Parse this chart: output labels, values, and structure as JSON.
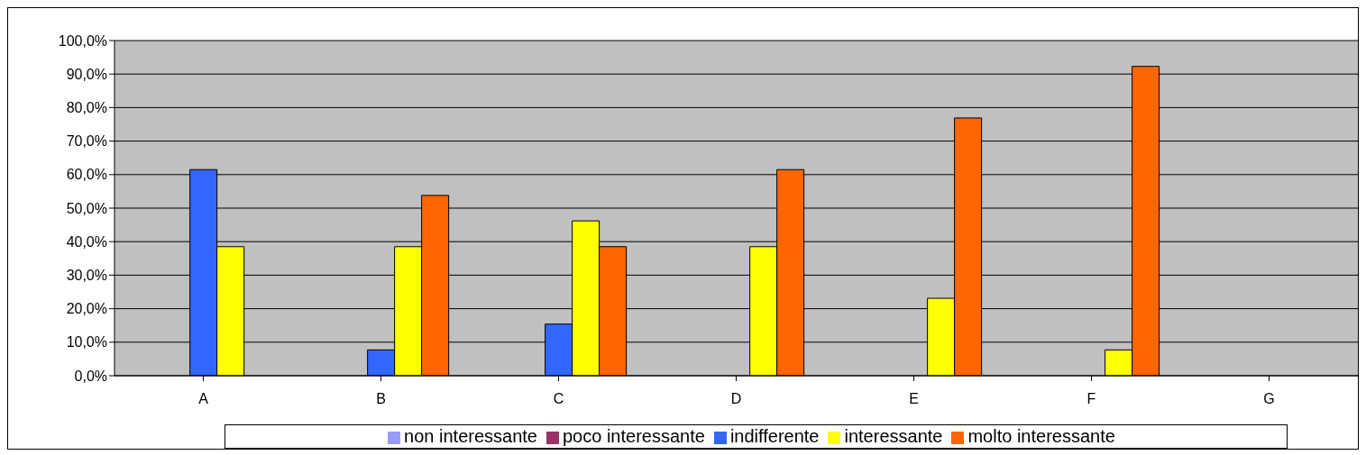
{
  "chart_data": {
    "type": "bar",
    "categories": [
      "A",
      "B",
      "C",
      "D",
      "E",
      "F",
      "G"
    ],
    "series": [
      {
        "name": "non interessante",
        "color": "#9999ff",
        "values": [
          0,
          0,
          0,
          0,
          0,
          0,
          0
        ]
      },
      {
        "name": "poco interessante",
        "color": "#993366",
        "values": [
          0,
          0,
          0,
          0,
          0,
          0,
          0
        ]
      },
      {
        "name": "indifferente",
        "color": "#3366ff",
        "values": [
          61.5,
          7.7,
          15.4,
          0,
          0,
          0,
          0
        ]
      },
      {
        "name": "interessante",
        "color": "#ffff00",
        "values": [
          38.5,
          38.5,
          46.2,
          38.5,
          23.1,
          7.7,
          0
        ]
      },
      {
        "name": "molto interessante",
        "color": "#ff6600",
        "values": [
          0,
          53.8,
          38.5,
          61.5,
          76.9,
          92.3,
          0
        ]
      }
    ],
    "ylim": [
      0,
      100
    ],
    "yticks": [
      {
        "value": 0,
        "label": "0,0%"
      },
      {
        "value": 10,
        "label": "10,0%"
      },
      {
        "value": 20,
        "label": "20,0%"
      },
      {
        "value": 30,
        "label": "30,0%"
      },
      {
        "value": 40,
        "label": "40,0%"
      },
      {
        "value": 50,
        "label": "50,0%"
      },
      {
        "value": 60,
        "label": "60,0%"
      },
      {
        "value": 70,
        "label": "70,0%"
      },
      {
        "value": 80,
        "label": "80,0%"
      },
      {
        "value": 90,
        "label": "90,0%"
      },
      {
        "value": 100,
        "label": "100,0%"
      }
    ],
    "grid": "y",
    "legend": "bottom"
  }
}
